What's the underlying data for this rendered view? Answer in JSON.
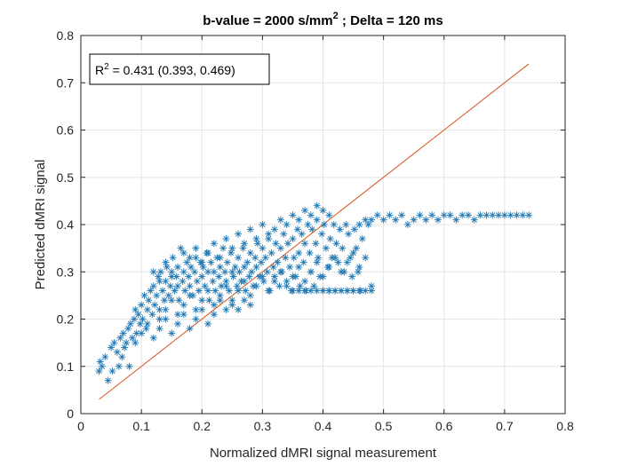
{
  "chart_data": {
    "type": "scatter",
    "title": "b-value = 2000 s/mm",
    "title_sup": "2",
    "title_rest": " ; Delta = 120 ms",
    "xlabel": "Normalized dMRI signal measurement",
    "ylabel": "Predicted dMRI signal",
    "xlim": [
      0,
      0.8
    ],
    "ylim": [
      0,
      0.8
    ],
    "xticks": [
      "0",
      "0.1",
      "0.2",
      "0.3",
      "0.4",
      "0.5",
      "0.6",
      "0.7",
      "0.8"
    ],
    "yticks": [
      "0",
      "0.1",
      "0.2",
      "0.3",
      "0.4",
      "0.5",
      "0.6",
      "0.7",
      "0.8"
    ],
    "grid": true,
    "annotation": {
      "r_label": "R",
      "r_sup": "2",
      "text": " = 0.431 (0.393, 0.469)"
    },
    "colors": {
      "scatter": "#1f77b4",
      "fit_line": "#d95319",
      "grid": "#e6e6e6",
      "axis": "#262626"
    },
    "fit_line": {
      "x": [
        0.03,
        0.74
      ],
      "y": [
        0.03,
        0.74
      ]
    },
    "scatter": {
      "marker": "asterisk",
      "points": [
        [
          0.03,
          0.09
        ],
        [
          0.032,
          0.11
        ],
        [
          0.035,
          0.1
        ],
        [
          0.04,
          0.12
        ],
        [
          0.045,
          0.07
        ],
        [
          0.05,
          0.14
        ],
        [
          0.052,
          0.09
        ],
        [
          0.055,
          0.15
        ],
        [
          0.06,
          0.13
        ],
        [
          0.063,
          0.1
        ],
        [
          0.065,
          0.16
        ],
        [
          0.068,
          0.12
        ],
        [
          0.07,
          0.17
        ],
        [
          0.072,
          0.14
        ],
        [
          0.075,
          0.15
        ],
        [
          0.078,
          0.18
        ],
        [
          0.08,
          0.1
        ],
        [
          0.082,
          0.19
        ],
        [
          0.085,
          0.16
        ],
        [
          0.088,
          0.2
        ],
        [
          0.09,
          0.22
        ],
        [
          0.092,
          0.17
        ],
        [
          0.095,
          0.21
        ],
        [
          0.098,
          0.19
        ],
        [
          0.1,
          0.23
        ],
        [
          0.102,
          0.2
        ],
        [
          0.105,
          0.25
        ],
        [
          0.108,
          0.18
        ],
        [
          0.11,
          0.22
        ],
        [
          0.112,
          0.24
        ],
        [
          0.115,
          0.26
        ],
        [
          0.118,
          0.21
        ],
        [
          0.12,
          0.27
        ],
        [
          0.122,
          0.23
        ],
        [
          0.125,
          0.25
        ],
        [
          0.128,
          0.29
        ],
        [
          0.13,
          0.22
        ],
        [
          0.132,
          0.3
        ],
        [
          0.135,
          0.26
        ],
        [
          0.138,
          0.24
        ],
        [
          0.14,
          0.28
        ],
        [
          0.142,
          0.31
        ],
        [
          0.145,
          0.25
        ],
        [
          0.148,
          0.27
        ],
        [
          0.15,
          0.3
        ],
        [
          0.152,
          0.33
        ],
        [
          0.155,
          0.26
        ],
        [
          0.158,
          0.29
        ],
        [
          0.16,
          0.31
        ],
        [
          0.162,
          0.24
        ],
        [
          0.165,
          0.35
        ],
        [
          0.168,
          0.28
        ],
        [
          0.17,
          0.3
        ],
        [
          0.172,
          0.26
        ],
        [
          0.175,
          0.32
        ],
        [
          0.178,
          0.29
        ],
        [
          0.18,
          0.27
        ],
        [
          0.182,
          0.31
        ],
        [
          0.185,
          0.25
        ],
        [
          0.188,
          0.3
        ],
        [
          0.19,
          0.33
        ],
        [
          0.192,
          0.28
        ],
        [
          0.195,
          0.26
        ],
        [
          0.198,
          0.32
        ],
        [
          0.2,
          0.29
        ],
        [
          0.202,
          0.31
        ],
        [
          0.205,
          0.27
        ],
        [
          0.208,
          0.34
        ],
        [
          0.21,
          0.3
        ],
        [
          0.212,
          0.24
        ],
        [
          0.215,
          0.32
        ],
        [
          0.218,
          0.28
        ],
        [
          0.22,
          0.3
        ],
        [
          0.222,
          0.26
        ],
        [
          0.225,
          0.33
        ],
        [
          0.228,
          0.29
        ],
        [
          0.23,
          0.31
        ],
        [
          0.232,
          0.27
        ],
        [
          0.235,
          0.35
        ],
        [
          0.238,
          0.3
        ],
        [
          0.24,
          0.28
        ],
        [
          0.242,
          0.32
        ],
        [
          0.245,
          0.26
        ],
        [
          0.248,
          0.34
        ],
        [
          0.25,
          0.3
        ],
        [
          0.252,
          0.29
        ],
        [
          0.255,
          0.31
        ],
        [
          0.258,
          0.27
        ],
        [
          0.26,
          0.33
        ],
        [
          0.262,
          0.3
        ],
        [
          0.265,
          0.28
        ],
        [
          0.268,
          0.35
        ],
        [
          0.27,
          0.31
        ],
        [
          0.272,
          0.26
        ],
        [
          0.275,
          0.32
        ],
        [
          0.278,
          0.29
        ],
        [
          0.28,
          0.34
        ],
        [
          0.282,
          0.3
        ],
        [
          0.285,
          0.27
        ],
        [
          0.288,
          0.33
        ],
        [
          0.29,
          0.31
        ],
        [
          0.292,
          0.36
        ],
        [
          0.295,
          0.29
        ],
        [
          0.298,
          0.32
        ],
        [
          0.3,
          0.35
        ],
        [
          0.302,
          0.28
        ],
        [
          0.305,
          0.33
        ],
        [
          0.308,
          0.3
        ],
        [
          0.31,
          0.37
        ],
        [
          0.312,
          0.26
        ],
        [
          0.315,
          0.34
        ],
        [
          0.318,
          0.31
        ],
        [
          0.32,
          0.29
        ],
        [
          0.322,
          0.36
        ],
        [
          0.325,
          0.32
        ],
        [
          0.328,
          0.27
        ],
        [
          0.33,
          0.35
        ],
        [
          0.332,
          0.3
        ],
        [
          0.335,
          0.38
        ],
        [
          0.338,
          0.33
        ],
        [
          0.34,
          0.28
        ],
        [
          0.342,
          0.36
        ],
        [
          0.345,
          0.31
        ],
        [
          0.348,
          0.26
        ],
        [
          0.35,
          0.37
        ],
        [
          0.352,
          0.33
        ],
        [
          0.355,
          0.29
        ],
        [
          0.358,
          0.39
        ],
        [
          0.36,
          0.34
        ],
        [
          0.362,
          0.27
        ],
        [
          0.365,
          0.38
        ],
        [
          0.368,
          0.32
        ],
        [
          0.37,
          0.36
        ],
        [
          0.372,
          0.26
        ],
        [
          0.375,
          0.4
        ],
        [
          0.378,
          0.34
        ],
        [
          0.38,
          0.3
        ],
        [
          0.382,
          0.39
        ],
        [
          0.385,
          0.27
        ],
        [
          0.388,
          0.36
        ],
        [
          0.39,
          0.41
        ],
        [
          0.392,
          0.33
        ],
        [
          0.395,
          0.29
        ],
        [
          0.398,
          0.38
        ],
        [
          0.4,
          0.26
        ],
        [
          0.402,
          0.4
        ],
        [
          0.405,
          0.35
        ],
        [
          0.408,
          0.31
        ],
        [
          0.41,
          0.26
        ],
        [
          0.412,
          0.37
        ],
        [
          0.415,
          0.33
        ],
        [
          0.418,
          0.4
        ],
        [
          0.42,
          0.26
        ],
        [
          0.422,
          0.36
        ],
        [
          0.425,
          0.32
        ],
        [
          0.428,
          0.39
        ],
        [
          0.43,
          0.26
        ],
        [
          0.432,
          0.35
        ],
        [
          0.435,
          0.3
        ],
        [
          0.438,
          0.4
        ],
        [
          0.44,
          0.26
        ],
        [
          0.442,
          0.38
        ],
        [
          0.445,
          0.33
        ],
        [
          0.448,
          0.29
        ],
        [
          0.45,
          0.26
        ],
        [
          0.452,
          0.39
        ],
        [
          0.455,
          0.35
        ],
        [
          0.458,
          0.3
        ],
        [
          0.46,
          0.4
        ],
        [
          0.462,
          0.26
        ],
        [
          0.465,
          0.37
        ],
        [
          0.47,
          0.41
        ],
        [
          0.475,
          0.4
        ],
        [
          0.48,
          0.41
        ],
        [
          0.49,
          0.42
        ],
        [
          0.5,
          0.41
        ],
        [
          0.51,
          0.42
        ],
        [
          0.52,
          0.41
        ],
        [
          0.53,
          0.42
        ],
        [
          0.54,
          0.4
        ],
        [
          0.55,
          0.41
        ],
        [
          0.56,
          0.42
        ],
        [
          0.57,
          0.41
        ],
        [
          0.58,
          0.42
        ],
        [
          0.59,
          0.41
        ],
        [
          0.6,
          0.42
        ],
        [
          0.61,
          0.42
        ],
        [
          0.62,
          0.41
        ],
        [
          0.63,
          0.42
        ],
        [
          0.64,
          0.42
        ],
        [
          0.65,
          0.41
        ],
        [
          0.66,
          0.42
        ],
        [
          0.67,
          0.42
        ],
        [
          0.68,
          0.42
        ],
        [
          0.69,
          0.42
        ],
        [
          0.7,
          0.42
        ],
        [
          0.71,
          0.42
        ],
        [
          0.72,
          0.42
        ],
        [
          0.73,
          0.42
        ],
        [
          0.74,
          0.42
        ],
        [
          0.13,
          0.2
        ],
        [
          0.14,
          0.22
        ],
        [
          0.15,
          0.24
        ],
        [
          0.16,
          0.21
        ],
        [
          0.17,
          0.23
        ],
        [
          0.18,
          0.25
        ],
        [
          0.19,
          0.22
        ],
        [
          0.2,
          0.24
        ],
        [
          0.21,
          0.26
        ],
        [
          0.22,
          0.23
        ],
        [
          0.23,
          0.25
        ],
        [
          0.24,
          0.27
        ],
        [
          0.25,
          0.24
        ],
        [
          0.26,
          0.26
        ],
        [
          0.27,
          0.28
        ],
        [
          0.28,
          0.25
        ],
        [
          0.29,
          0.27
        ],
        [
          0.3,
          0.29
        ],
        [
          0.31,
          0.26
        ],
        [
          0.32,
          0.28
        ],
        [
          0.33,
          0.3
        ],
        [
          0.34,
          0.27
        ],
        [
          0.35,
          0.29
        ],
        [
          0.36,
          0.31
        ],
        [
          0.37,
          0.28
        ],
        [
          0.38,
          0.3
        ],
        [
          0.39,
          0.32
        ],
        [
          0.4,
          0.29
        ],
        [
          0.41,
          0.31
        ],
        [
          0.42,
          0.33
        ],
        [
          0.43,
          0.3
        ],
        [
          0.44,
          0.32
        ],
        [
          0.45,
          0.34
        ],
        [
          0.46,
          0.31
        ],
        [
          0.47,
          0.33
        ],
        [
          0.48,
          0.26
        ],
        [
          0.35,
          0.26
        ],
        [
          0.36,
          0.26
        ],
        [
          0.37,
          0.26
        ],
        [
          0.38,
          0.26
        ],
        [
          0.39,
          0.26
        ],
        [
          0.4,
          0.26
        ],
        [
          0.41,
          0.26
        ],
        [
          0.42,
          0.26
        ],
        [
          0.43,
          0.26
        ],
        [
          0.44,
          0.26
        ],
        [
          0.45,
          0.26
        ],
        [
          0.46,
          0.26
        ],
        [
          0.47,
          0.26
        ],
        [
          0.48,
          0.27
        ],
        [
          0.12,
          0.3
        ],
        [
          0.13,
          0.28
        ],
        [
          0.14,
          0.32
        ],
        [
          0.15,
          0.29
        ],
        [
          0.16,
          0.27
        ],
        [
          0.17,
          0.34
        ],
        [
          0.18,
          0.33
        ],
        [
          0.19,
          0.35
        ],
        [
          0.2,
          0.32
        ],
        [
          0.21,
          0.34
        ],
        [
          0.22,
          0.36
        ],
        [
          0.23,
          0.33
        ],
        [
          0.24,
          0.37
        ],
        [
          0.25,
          0.35
        ],
        [
          0.26,
          0.38
        ],
        [
          0.27,
          0.36
        ],
        [
          0.28,
          0.39
        ],
        [
          0.29,
          0.37
        ],
        [
          0.3,
          0.4
        ],
        [
          0.31,
          0.38
        ],
        [
          0.32,
          0.39
        ],
        [
          0.33,
          0.41
        ],
        [
          0.34,
          0.4
        ],
        [
          0.35,
          0.42
        ],
        [
          0.36,
          0.41
        ],
        [
          0.37,
          0.43
        ],
        [
          0.38,
          0.42
        ],
        [
          0.39,
          0.44
        ],
        [
          0.4,
          0.43
        ],
        [
          0.41,
          0.42
        ],
        [
          0.09,
          0.15
        ],
        [
          0.1,
          0.17
        ],
        [
          0.11,
          0.19
        ],
        [
          0.12,
          0.16
        ],
        [
          0.13,
          0.18
        ],
        [
          0.14,
          0.2
        ],
        [
          0.15,
          0.17
        ],
        [
          0.16,
          0.19
        ],
        [
          0.17,
          0.21
        ],
        [
          0.18,
          0.18
        ],
        [
          0.19,
          0.2
        ],
        [
          0.2,
          0.22
        ],
        [
          0.21,
          0.19
        ],
        [
          0.22,
          0.21
        ],
        [
          0.23,
          0.24
        ],
        [
          0.24,
          0.22
        ],
        [
          0.25,
          0.23
        ],
        [
          0.26,
          0.22
        ],
        [
          0.27,
          0.24
        ],
        [
          0.28,
          0.23
        ]
      ]
    }
  }
}
